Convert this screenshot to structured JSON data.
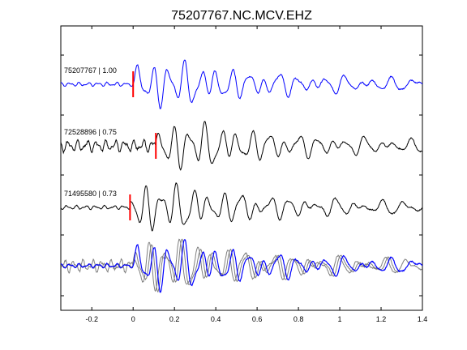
{
  "chart_data": {
    "type": "line",
    "title": "75207767.NC.MCV.EHZ",
    "xlabel": "",
    "ylabel": "",
    "xlim": [
      -0.35,
      1.4
    ],
    "x_ticks": [
      "-0.2",
      "0",
      "0.2",
      "0.4",
      "0.6",
      "0.8",
      "1",
      "1.2",
      "1.4"
    ],
    "x_tick_values": [
      -0.2,
      0,
      0.2,
      0.4,
      0.6,
      0.8,
      1.0,
      1.2,
      1.4
    ],
    "grid": false,
    "traces": [
      {
        "label": "75207767 | 1.00",
        "event_id": "75207767",
        "correlation": 1.0,
        "pick_time": 0.0,
        "color": "#0000ff"
      },
      {
        "label": "72528896 | 0.75",
        "event_id": "72528896",
        "correlation": 0.75,
        "pick_time": 0.11,
        "color": "#000000"
      },
      {
        "label": "71495580 | 0.73",
        "event_id": "71495580",
        "correlation": 0.73,
        "pick_time": -0.015,
        "color": "#000000"
      }
    ],
    "stacked_overlay": true,
    "pick_color": "#ff0000"
  }
}
